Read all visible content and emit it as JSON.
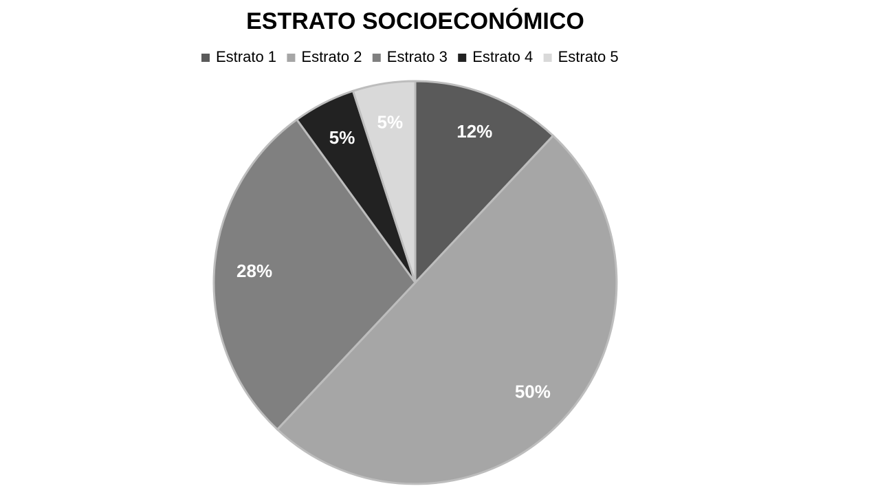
{
  "chart_data": {
    "type": "pie",
    "title": "ESTRATO SOCIOECONÓMICO",
    "categories": [
      "Estrato 1",
      "Estrato 2",
      "Estrato 3",
      "Estrato 4",
      "Estrato 5"
    ],
    "values": [
      12,
      50,
      28,
      5,
      5
    ],
    "value_labels": [
      "12%",
      "50%",
      "28%",
      "5%",
      "5%"
    ],
    "colors": [
      "#5a5a5a",
      "#a6a6a6",
      "#808080",
      "#222222",
      "#d9d9d9"
    ],
    "legend": "top"
  }
}
